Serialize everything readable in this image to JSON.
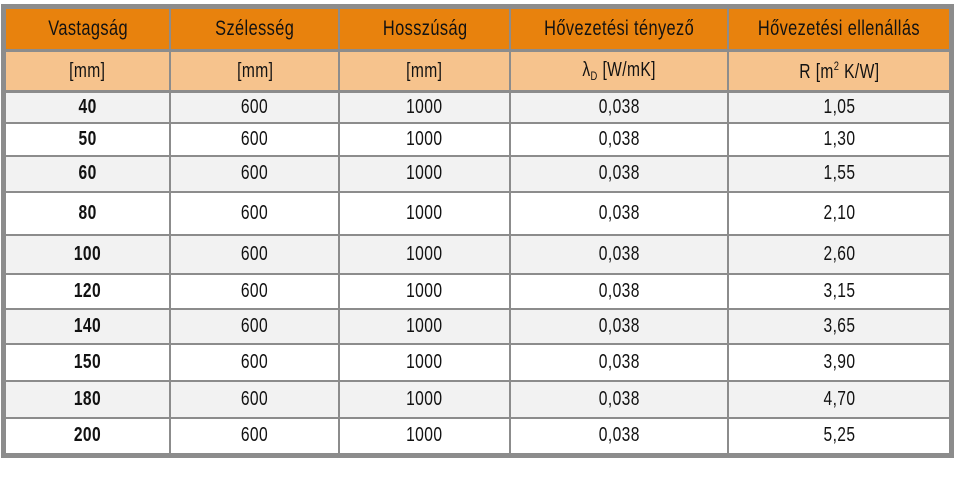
{
  "colors": {
    "header_bg": "#E8820D",
    "unit_row_bg": "#F6C38D",
    "stripe_bg": "#F2F2F2",
    "grid": "#8C8C8C",
    "text": "#121212"
  },
  "table": {
    "columns": [
      {
        "label": "Vastagság",
        "unit": "[mm]"
      },
      {
        "label": "Szélesség",
        "unit": "[mm]"
      },
      {
        "label": "Hosszúság",
        "unit": "[mm]"
      },
      {
        "label": "Hővezetési tényező",
        "unit_symbol": "λ",
        "unit_sub": "D",
        "unit_rest": " [W/mK]"
      },
      {
        "label": "Hővezetési ellenállás",
        "unit_pre": "R [m",
        "unit_sup": "2",
        "unit_rest": " K/W]"
      }
    ],
    "rows": [
      [
        "40",
        "600",
        "1000",
        "0,038",
        "1,05"
      ],
      [
        "50",
        "600",
        "1000",
        "0,038",
        "1,30"
      ],
      [
        "60",
        "600",
        "1000",
        "0,038",
        "1,55"
      ],
      [
        "80",
        "600",
        "1000",
        "0,038",
        "2,10"
      ],
      [
        "100",
        "600",
        "1000",
        "0,038",
        "2,60"
      ],
      [
        "120",
        "600",
        "1000",
        "0,038",
        "3,15"
      ],
      [
        "140",
        "600",
        "1000",
        "0,038",
        "3,65"
      ],
      [
        "150",
        "600",
        "1000",
        "0,038",
        "3,90"
      ],
      [
        "180",
        "600",
        "1000",
        "0,038",
        "4,70"
      ],
      [
        "200",
        "600",
        "1000",
        "0,038",
        "5,25"
      ]
    ]
  }
}
